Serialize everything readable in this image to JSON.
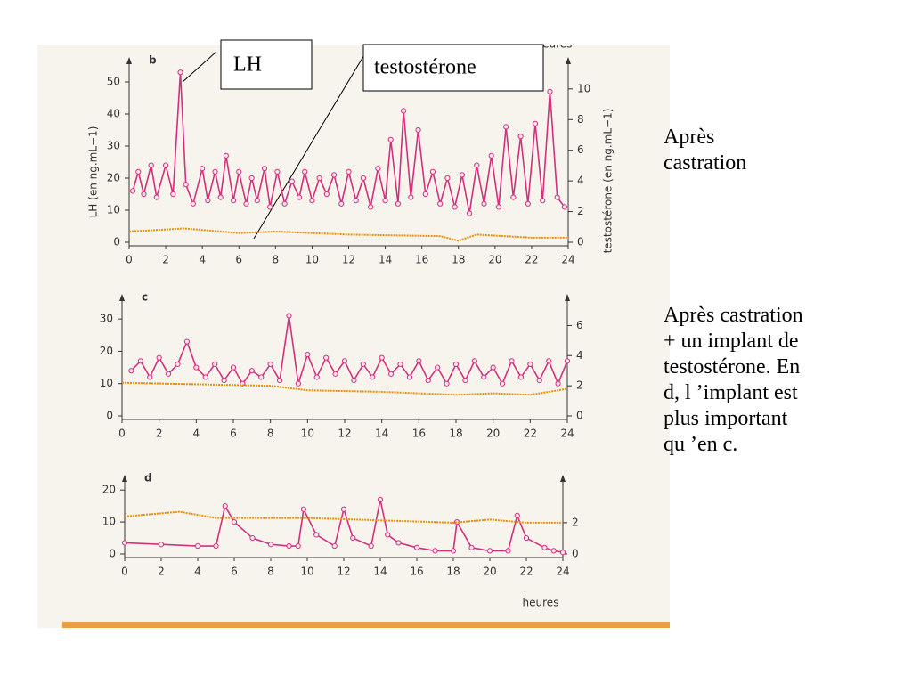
{
  "slide": {
    "callouts": [
      "LH",
      "testostérone"
    ],
    "scan_fragment": "heures",
    "notes": [
      [
        "Après",
        "castration"
      ],
      [
        "Après castration",
        "+ un implant de",
        "testostérone. En",
        "d, l ’implant est",
        "plus important",
        "qu ’en c."
      ]
    ]
  },
  "chart_data": [
    {
      "type": "line",
      "panel": "b",
      "ylabel": "LH (en ng.mL−1)",
      "y2label": "testostérone (en ng.mL−1)",
      "xlim": [
        0,
        24
      ],
      "xticks": [
        0,
        2,
        4,
        6,
        8,
        10,
        12,
        14,
        16,
        18,
        20,
        22,
        24
      ],
      "ylim": [
        0,
        55
      ],
      "yticks": [
        0,
        10,
        20,
        30,
        40,
        50
      ],
      "y2lim": [
        0,
        11.5
      ],
      "y2ticks": [
        0,
        2,
        4,
        6,
        8,
        10
      ],
      "series": [
        {
          "name": "LH",
          "color": "#d4307c",
          "x": [
            0.2,
            0.5,
            0.8,
            1.2,
            1.5,
            2,
            2.4,
            2.8,
            3.1,
            3.5,
            4,
            4.3,
            4.7,
            5,
            5.3,
            5.7,
            6,
            6.4,
            6.7,
            7,
            7.4,
            7.7,
            8.1,
            8.5,
            8.9,
            9.3,
            9.6,
            10,
            10.4,
            10.8,
            11.2,
            11.6,
            12,
            12.4,
            12.8,
            13.2,
            13.6,
            14,
            14.3,
            14.7,
            15,
            15.4,
            15.8,
            16.2,
            16.6,
            17,
            17.4,
            17.8,
            18.2,
            18.6,
            19,
            19.4,
            19.8,
            20.2,
            20.6,
            21,
            21.4,
            21.8,
            22.2,
            22.6,
            23,
            23.4,
            23.8
          ],
          "values": [
            16,
            22,
            15,
            24,
            14,
            24,
            15,
            53,
            18,
            12,
            23,
            13,
            22,
            14,
            27,
            13,
            22,
            12,
            20,
            13,
            23,
            11,
            22,
            12,
            19,
            14,
            22,
            13,
            20,
            15,
            21,
            12,
            22,
            13,
            20,
            11,
            23,
            13,
            32,
            12,
            41,
            14,
            35,
            15,
            22,
            12,
            20,
            11,
            21,
            9,
            24,
            12,
            27,
            11,
            36,
            14,
            33,
            12,
            37,
            13,
            47,
            14,
            11
          ]
        },
        {
          "name": "testostérone",
          "color": "#e8900a",
          "axis": "y2",
          "x": [
            0,
            3,
            6,
            8,
            12,
            17,
            18,
            19,
            22,
            24
          ],
          "values": [
            0.7,
            0.9,
            0.6,
            0.7,
            0.5,
            0.4,
            0.1,
            0.5,
            0.3,
            0.3
          ]
        }
      ]
    },
    {
      "type": "line",
      "panel": "c",
      "xlim": [
        0,
        24
      ],
      "xticks": [
        0,
        2,
        4,
        6,
        8,
        10,
        12,
        14,
        16,
        18,
        20,
        22,
        24
      ],
      "ylim": [
        0,
        35
      ],
      "yticks": [
        0,
        10,
        20,
        30
      ],
      "y2lim": [
        0,
        7.5
      ],
      "y2ticks": [
        0,
        2,
        4,
        6
      ],
      "series": [
        {
          "name": "LH",
          "color": "#d4307c",
          "x": [
            0.5,
            1,
            1.5,
            2,
            2.5,
            3,
            3.5,
            4,
            4.5,
            5,
            5.5,
            6,
            6.5,
            7,
            7.5,
            8,
            8.5,
            9,
            9.5,
            10,
            10.5,
            11,
            11.5,
            12,
            12.5,
            13,
            13.5,
            14,
            14.5,
            15,
            15.5,
            16,
            16.5,
            17,
            17.5,
            18,
            18.5,
            19,
            19.5,
            20,
            20.5,
            21,
            21.5,
            22,
            22.5,
            23,
            23.5,
            24
          ],
          "values": [
            14,
            17,
            12,
            18,
            13,
            16,
            23,
            15,
            12,
            16,
            11,
            15,
            10,
            14,
            12,
            16,
            11,
            31,
            10,
            19,
            12,
            18,
            13,
            17,
            11,
            16,
            12,
            18,
            13,
            16,
            12,
            17,
            11,
            15,
            10,
            16,
            11,
            17,
            12,
            15,
            10,
            17,
            12,
            16,
            11,
            17,
            10,
            17
          ]
        },
        {
          "name": "testostérone",
          "color": "#e8900a",
          "axis": "y2",
          "x": [
            0,
            4,
            8,
            10,
            14,
            18,
            20,
            22,
            24
          ],
          "values": [
            2.2,
            2.1,
            2.0,
            1.7,
            1.6,
            1.4,
            1.5,
            1.4,
            1.8
          ]
        }
      ]
    },
    {
      "type": "line",
      "panel": "d",
      "xlabel": "heures",
      "xlim": [
        0,
        24
      ],
      "xticks": [
        0,
        2,
        4,
        6,
        8,
        10,
        12,
        14,
        16,
        18,
        20,
        22,
        24
      ],
      "ylim": [
        0,
        22
      ],
      "yticks": [
        0,
        10,
        20
      ],
      "y2lim": [
        0,
        4.5
      ],
      "y2ticks": [
        0,
        2
      ],
      "series": [
        {
          "name": "LH",
          "color": "#d4307c",
          "x": [
            0,
            2,
            4,
            5,
            5.5,
            6,
            7,
            8,
            9,
            9.5,
            9.8,
            10.5,
            11.5,
            12,
            12.5,
            13.5,
            14,
            14.4,
            15,
            16,
            17,
            18,
            18.2,
            19,
            20,
            21,
            21.5,
            22,
            23,
            23.5,
            24
          ],
          "values": [
            3.5,
            3,
            2.5,
            2.5,
            15,
            10,
            5,
            3,
            2.5,
            2.5,
            14,
            6,
            2.5,
            14,
            5,
            2.5,
            17,
            6,
            3.5,
            2,
            1,
            1,
            10,
            2,
            1,
            1,
            12,
            5,
            2,
            1,
            0.5
          ]
        },
        {
          "name": "testostérone",
          "color": "#e8900a",
          "axis": "y2",
          "x": [
            0,
            3,
            5,
            6,
            10,
            18,
            20,
            22,
            24
          ],
          "values": [
            2.4,
            2.7,
            2.3,
            2.3,
            2.3,
            2.0,
            2.2,
            2.0,
            2.0
          ]
        }
      ]
    }
  ]
}
